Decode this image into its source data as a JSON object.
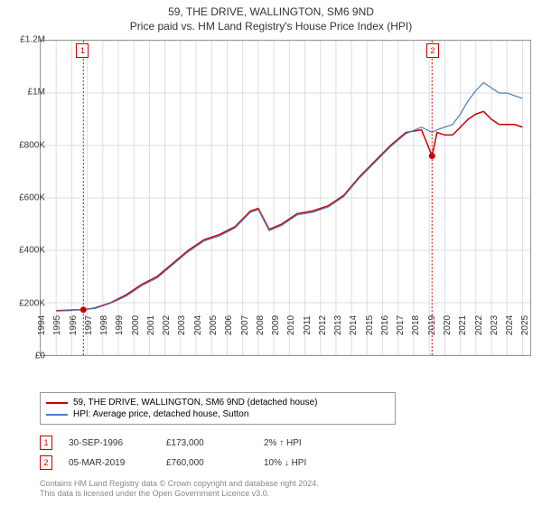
{
  "title": "59, THE DRIVE, WALLINGTON, SM6 9ND",
  "subtitle": "Price paid vs. HM Land Registry's House Price Index (HPI)",
  "chart": {
    "type": "line",
    "background_color": "#ffffff",
    "border_color": "#999999",
    "xlim": [
      1994,
      2025.5
    ],
    "ylim": [
      0,
      1200000
    ],
    "xticks": [
      1994,
      1995,
      1996,
      1997,
      1998,
      1999,
      2000,
      2001,
      2002,
      2003,
      2004,
      2005,
      2006,
      2007,
      2008,
      2009,
      2010,
      2011,
      2012,
      2013,
      2014,
      2015,
      2016,
      2017,
      2018,
      2019,
      2020,
      2021,
      2022,
      2023,
      2024,
      2025
    ],
    "yticks": [
      0,
      200000,
      400000,
      600000,
      800000,
      1000000,
      1200000
    ],
    "ytick_labels": [
      "£0",
      "£200K",
      "£400K",
      "£600K",
      "£800K",
      "£1M",
      "£1.2M"
    ],
    "grid_color": "#dddddd",
    "series": [
      {
        "name": "59, THE DRIVE, WALLINGTON, SM6 9ND (detached house)",
        "color": "#cc0000",
        "line_width": 1.5,
        "data": [
          [
            1995.0,
            170000
          ],
          [
            1996.0,
            172000
          ],
          [
            1996.75,
            173000
          ],
          [
            1997.5,
            180000
          ],
          [
            1998.5,
            200000
          ],
          [
            1999.5,
            230000
          ],
          [
            2000.5,
            270000
          ],
          [
            2001.5,
            300000
          ],
          [
            2002.5,
            350000
          ],
          [
            2003.5,
            400000
          ],
          [
            2004.5,
            440000
          ],
          [
            2005.5,
            460000
          ],
          [
            2006.5,
            490000
          ],
          [
            2007.5,
            550000
          ],
          [
            2008.0,
            560000
          ],
          [
            2008.7,
            480000
          ],
          [
            2009.5,
            500000
          ],
          [
            2010.5,
            540000
          ],
          [
            2011.5,
            550000
          ],
          [
            2012.5,
            570000
          ],
          [
            2013.5,
            610000
          ],
          [
            2014.5,
            680000
          ],
          [
            2015.5,
            740000
          ],
          [
            2016.5,
            800000
          ],
          [
            2017.5,
            850000
          ],
          [
            2018.5,
            860000
          ],
          [
            2019.18,
            760000
          ],
          [
            2019.5,
            850000
          ],
          [
            2020.0,
            840000
          ],
          [
            2020.5,
            840000
          ],
          [
            2021.0,
            870000
          ],
          [
            2021.5,
            900000
          ],
          [
            2022.0,
            920000
          ],
          [
            2022.5,
            930000
          ],
          [
            2023.0,
            900000
          ],
          [
            2023.5,
            880000
          ],
          [
            2024.0,
            880000
          ],
          [
            2024.5,
            880000
          ],
          [
            2025.0,
            870000
          ]
        ]
      },
      {
        "name": "HPI: Average price, detached house, Sutton",
        "color": "#4a7ebb",
        "line_width": 1.2,
        "data": [
          [
            1995.0,
            168000
          ],
          [
            1996.0,
            170000
          ],
          [
            1997.5,
            178000
          ],
          [
            1998.5,
            198000
          ],
          [
            1999.5,
            225000
          ],
          [
            2000.5,
            265000
          ],
          [
            2001.5,
            295000
          ],
          [
            2002.5,
            345000
          ],
          [
            2003.5,
            395000
          ],
          [
            2004.5,
            435000
          ],
          [
            2005.5,
            455000
          ],
          [
            2006.5,
            485000
          ],
          [
            2007.5,
            545000
          ],
          [
            2008.0,
            555000
          ],
          [
            2008.7,
            475000
          ],
          [
            2009.5,
            495000
          ],
          [
            2010.5,
            535000
          ],
          [
            2011.5,
            545000
          ],
          [
            2012.5,
            565000
          ],
          [
            2013.5,
            605000
          ],
          [
            2014.5,
            675000
          ],
          [
            2015.5,
            735000
          ],
          [
            2016.5,
            795000
          ],
          [
            2017.5,
            845000
          ],
          [
            2018.5,
            870000
          ],
          [
            2019.18,
            850000
          ],
          [
            2019.5,
            860000
          ],
          [
            2020.0,
            870000
          ],
          [
            2020.5,
            880000
          ],
          [
            2021.0,
            920000
          ],
          [
            2021.5,
            970000
          ],
          [
            2022.0,
            1010000
          ],
          [
            2022.5,
            1040000
          ],
          [
            2023.0,
            1020000
          ],
          [
            2023.5,
            1000000
          ],
          [
            2024.0,
            1000000
          ],
          [
            2024.5,
            990000
          ],
          [
            2025.0,
            980000
          ]
        ]
      }
    ],
    "sale_markers": [
      {
        "num": "1",
        "year": 1996.75,
        "vtick_color": "#cc0000"
      },
      {
        "num": "2",
        "year": 2019.18,
        "vtick_color": "#cc0000"
      }
    ],
    "sale_points": [
      {
        "year": 1996.75,
        "price": 173000,
        "color": "#cc0000"
      },
      {
        "year": 2019.18,
        "price": 760000,
        "color": "#cc0000"
      }
    ]
  },
  "legend": {
    "items": [
      {
        "color": "#cc0000",
        "label": "59, THE DRIVE, WALLINGTON, SM6 9ND (detached house)"
      },
      {
        "color": "#4a7ebb",
        "label": "HPI: Average price, detached house, Sutton"
      }
    ]
  },
  "sales": [
    {
      "num": "1",
      "date": "30-SEP-1996",
      "price": "£173,000",
      "delta": "2% ↑ HPI"
    },
    {
      "num": "2",
      "date": "05-MAR-2019",
      "price": "£760,000",
      "delta": "10% ↓ HPI"
    }
  ],
  "attribution": {
    "line1": "Contains HM Land Registry data © Crown copyright and database right 2024.",
    "line2": "This data is licensed under the Open Government Licence v3.0."
  }
}
